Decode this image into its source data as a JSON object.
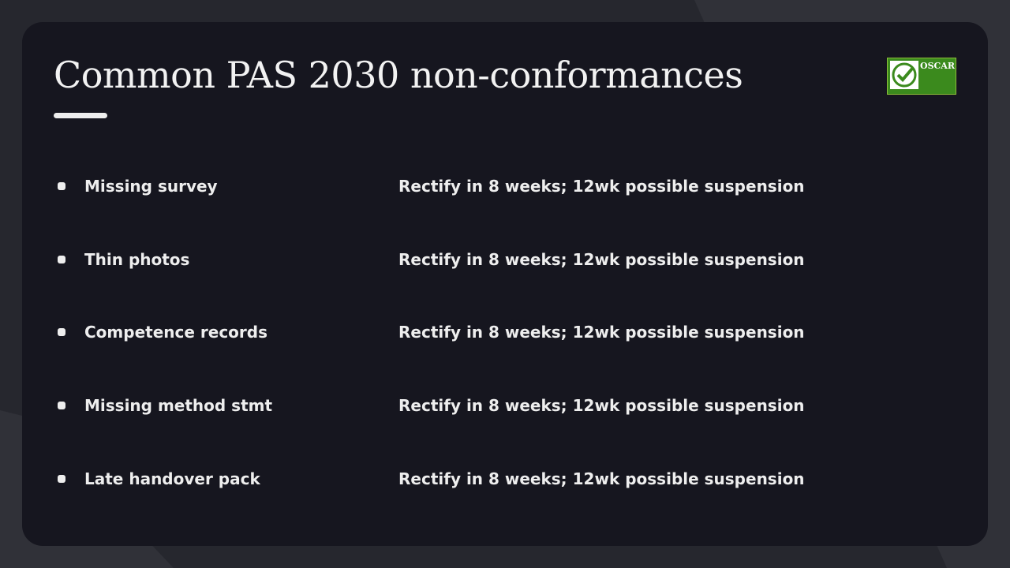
{
  "header": {
    "title": "Common PAS 2030 non-conformances",
    "logo": "OSCAR"
  },
  "rows": [
    {
      "issue": "Missing survey",
      "action": "Rectify in 8 weeks; 12wk possible suspension"
    },
    {
      "issue": "Thin photos",
      "action": "Rectify in 8 weeks; 12wk possible suspension"
    },
    {
      "issue": "Competence records",
      "action": "Rectify in 8 weeks; 12wk possible suspension"
    },
    {
      "issue": "Missing method stmt",
      "action": "Rectify in 8 weeks; 12wk possible suspension"
    },
    {
      "issue": "Late handover pack",
      "action": "Rectify in 8 weeks; 12wk possible suspension"
    }
  ]
}
